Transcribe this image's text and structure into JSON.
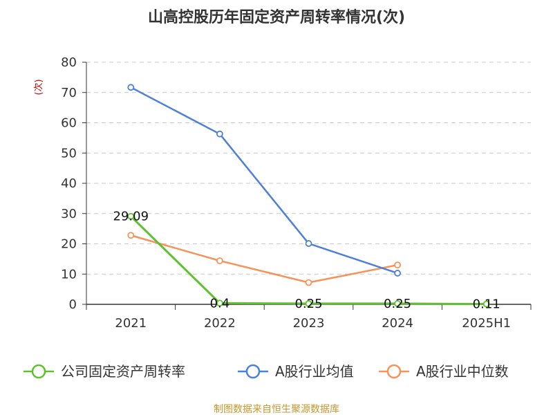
{
  "chart_data": {
    "type": "line",
    "title": "山高控股历年固定资产周转率情况(次)",
    "ylabel": "(次)",
    "categories": [
      "2021",
      "2022",
      "2023",
      "2024",
      "2025H1"
    ],
    "ylim": [
      0,
      80
    ],
    "yticks": [
      0,
      10,
      20,
      30,
      40,
      50,
      60,
      70,
      80
    ],
    "grid": true,
    "legend_position": "bottom",
    "series": [
      {
        "name": "公司固定资产周转率",
        "color": "#5cc22e",
        "values": [
          29.09,
          0.4,
          0.25,
          0.25,
          0.11
        ],
        "labels": [
          "29.09",
          "0.4",
          "0.25",
          "0.25",
          "0.11"
        ]
      },
      {
        "name": "A股行业均值",
        "color": "#4e7fdb",
        "values": [
          71.7,
          56.3,
          20.1,
          10.3,
          null
        ]
      },
      {
        "name": "A股行业中位数",
        "color": "#f5935a",
        "values": [
          22.8,
          14.4,
          7.2,
          13.0,
          null
        ]
      }
    ],
    "source": "制图数据来自恒生聚源数据库"
  }
}
